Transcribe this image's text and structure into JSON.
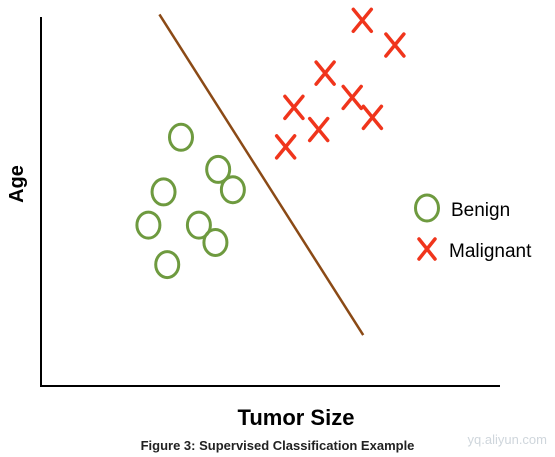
{
  "chart_data": {
    "type": "scatter",
    "title": "",
    "xlabel": "Tumor Size",
    "ylabel": "Age",
    "xlim": [
      0,
      100
    ],
    "ylim": [
      0,
      100
    ],
    "grid": false,
    "legend_position": "right",
    "series": [
      {
        "name": "Benign",
        "marker": "circle",
        "color": "#6e9a3f",
        "points": [
          {
            "x": 30.5,
            "y": 67.4
          },
          {
            "x": 38.6,
            "y": 58.7
          },
          {
            "x": 26.7,
            "y": 52.6
          },
          {
            "x": 41.8,
            "y": 53.2
          },
          {
            "x": 23.4,
            "y": 43.6
          },
          {
            "x": 34.4,
            "y": 43.6
          },
          {
            "x": 38.0,
            "y": 38.9
          },
          {
            "x": 27.5,
            "y": 32.9
          }
        ]
      },
      {
        "name": "Malignant",
        "marker": "x",
        "color": "#f0351c",
        "points": [
          {
            "x": 70.0,
            "y": 99.1
          },
          {
            "x": 77.1,
            "y": 92.4
          },
          {
            "x": 61.9,
            "y": 84.8
          },
          {
            "x": 67.8,
            "y": 78.2
          },
          {
            "x": 55.1,
            "y": 75.5
          },
          {
            "x": 72.2,
            "y": 72.8
          },
          {
            "x": 60.5,
            "y": 69.5
          },
          {
            "x": 53.3,
            "y": 64.8
          }
        ]
      }
    ],
    "decision_boundary": {
      "color": "#8b4a16",
      "from": {
        "x": 25.8,
        "y": 100.7
      },
      "to": {
        "x": 70.2,
        "y": 13.8
      }
    }
  },
  "legend": {
    "items": [
      {
        "label": "Benign",
        "marker": "circle",
        "color": "#6e9a3f"
      },
      {
        "label": "Malignant",
        "marker": "x",
        "color": "#f0351c"
      }
    ]
  },
  "caption": "Figure 3: Supervised Classification Example",
  "watermark": "yq.aliyun.com"
}
